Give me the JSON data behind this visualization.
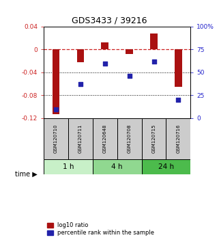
{
  "title": "GDS3433 / 39216",
  "samples": [
    "GSM120710",
    "GSM120711",
    "GSM120648",
    "GSM120708",
    "GSM120715",
    "GSM120716"
  ],
  "log10_ratio": [
    -0.113,
    -0.022,
    0.013,
    -0.008,
    0.028,
    -0.065
  ],
  "percentile_rank": [
    10,
    37,
    60,
    46,
    62,
    20
  ],
  "ylim_left": [
    -0.12,
    0.04
  ],
  "ylim_right": [
    0,
    100
  ],
  "yticks_left": [
    0.04,
    0,
    -0.04,
    -0.08,
    -0.12
  ],
  "yticks_right": [
    100,
    75,
    50,
    25,
    0
  ],
  "ytick_labels_left": [
    "0.04",
    "0",
    "-0.04",
    "-0.08",
    "-0.12"
  ],
  "ytick_labels_right": [
    "100%",
    "75",
    "50",
    "25",
    "0"
  ],
  "time_groups": [
    {
      "label": "1 h",
      "start": 0,
      "end": 1,
      "color": "#c8f0c8"
    },
    {
      "label": "4 h",
      "start": 2,
      "end": 3,
      "color": "#90d890"
    },
    {
      "label": "24 h",
      "start": 4,
      "end": 5,
      "color": "#4cbb4c"
    }
  ],
  "bar_color": "#aa1111",
  "dot_color": "#2222aa",
  "zero_line_color": "#cc2222",
  "grid_color": "#000000",
  "legend_red_label": "log10 ratio",
  "legend_blue_label": "percentile rank within the sample",
  "background_plot": "#ffffff",
  "sample_box_color": "#cccccc",
  "bar_width": 0.3
}
